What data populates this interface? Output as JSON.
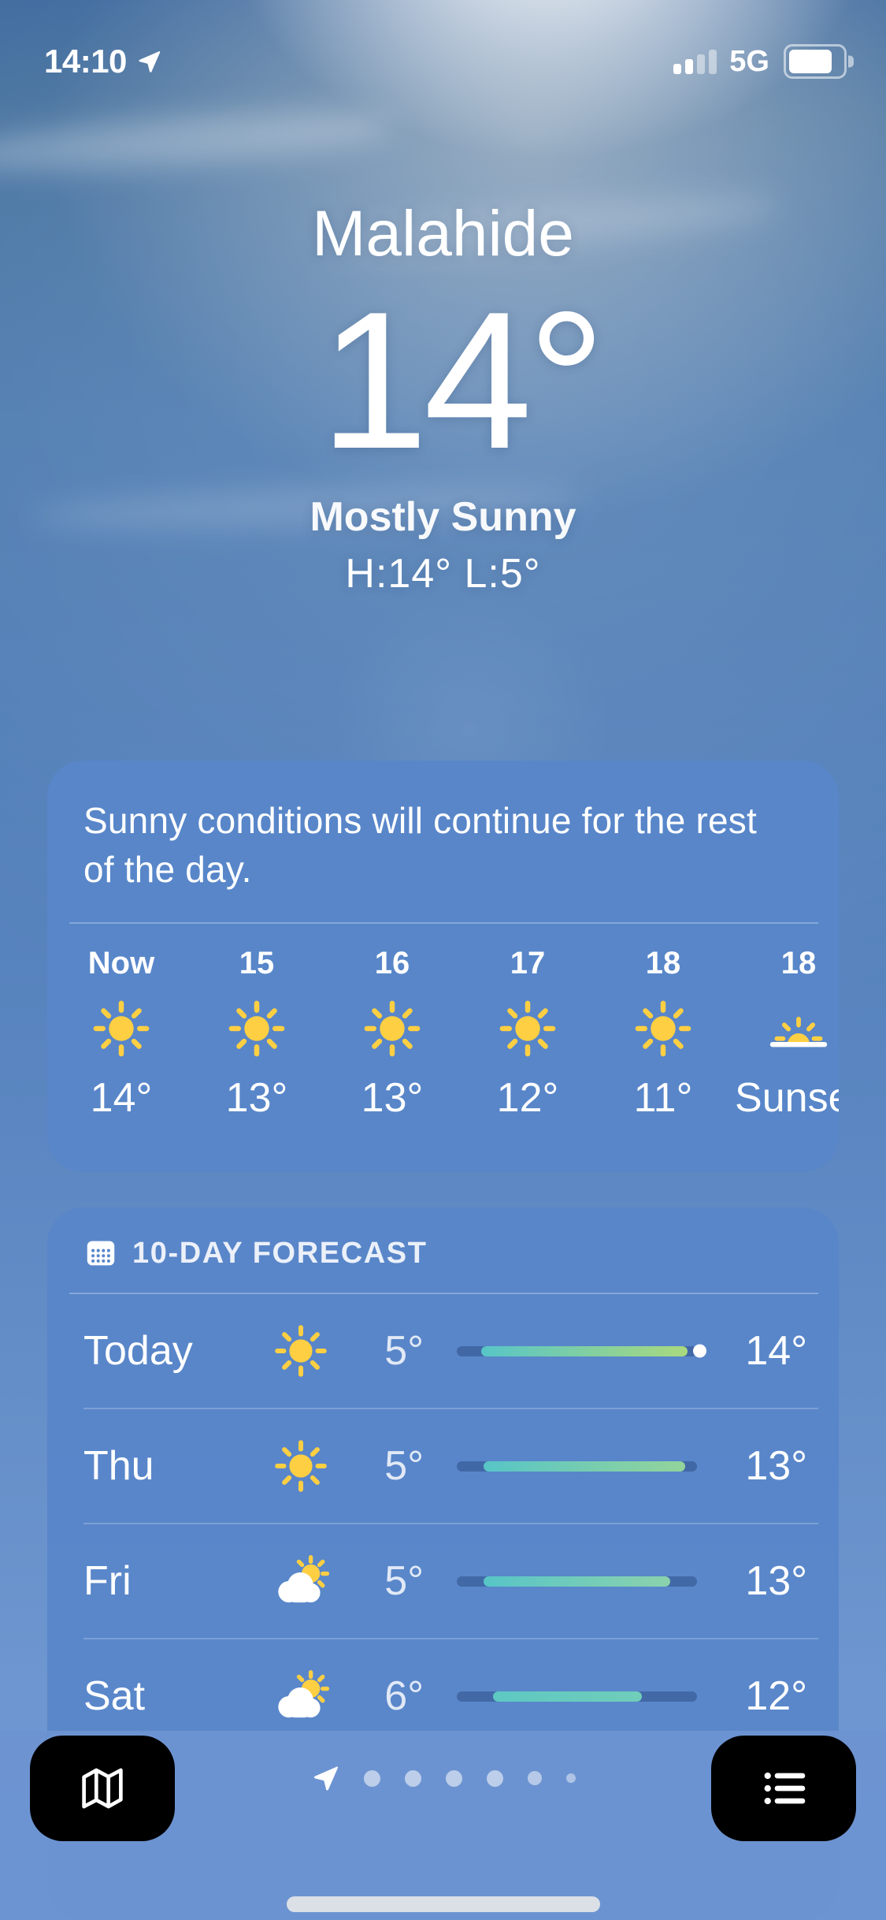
{
  "status_bar": {
    "time": "14:10",
    "network": "5G",
    "icons": {
      "location": "location-arrow-icon",
      "signal": "cellular-signal-icon",
      "battery": "battery-icon"
    }
  },
  "hero": {
    "city": "Malahide",
    "temperature": "14°",
    "condition": "Mostly Sunny",
    "high_low": "H:14°  L:5°"
  },
  "hourly_card": {
    "summary": "Sunny conditions will continue for the rest of the day.",
    "hours": [
      {
        "time": "Now",
        "icon": "sun",
        "temp": "14°"
      },
      {
        "time": "15",
        "icon": "sun",
        "temp": "13°"
      },
      {
        "time": "16",
        "icon": "sun",
        "temp": "13°"
      },
      {
        "time": "17",
        "icon": "sun",
        "temp": "12°"
      },
      {
        "time": "18",
        "icon": "sun",
        "temp": "11°"
      },
      {
        "time": "18",
        "icon": "sunset",
        "temp": "Sunset"
      }
    ]
  },
  "forecast_card": {
    "title": "10-DAY FORECAST",
    "title_icon": "calendar-icon",
    "days": [
      {
        "day": "Today",
        "icon": "sun",
        "low": "5°",
        "high": "14°",
        "bar": {
          "start": 10,
          "end": 96,
          "from": "#57C5C7",
          "to": "#A9D97E",
          "dot": true
        }
      },
      {
        "day": "Thu",
        "icon": "sun",
        "low": "5°",
        "high": "13°",
        "bar": {
          "start": 11,
          "end": 95,
          "from": "#57C5C7",
          "to": "#93D49B",
          "dot": false
        }
      },
      {
        "day": "Fri",
        "icon": "partly",
        "low": "5°",
        "high": "13°",
        "bar": {
          "start": 11,
          "end": 89,
          "from": "#57C5C7",
          "to": "#8BD2AC",
          "dot": false
        }
      },
      {
        "day": "Sat",
        "icon": "partly",
        "low": "6°",
        "high": "12°",
        "bar": {
          "start": 15,
          "end": 77,
          "from": "#5EC8C3",
          "to": "#70CDBA",
          "dot": false
        }
      }
    ]
  },
  "tab_bar": {
    "map_button_icon": "map-icon",
    "list_button_icon": "list-bullet-icon",
    "current_page_icon": "location-arrow-icon",
    "page_dots": 6
  },
  "colors": {
    "sun_yellow": "#FFCF43",
    "card_blue": "#5886C9",
    "bar_track": "rgba(20,48,96,0.34)",
    "bar_teal": "#57C5C7",
    "bar_green": "#A9D97E"
  }
}
